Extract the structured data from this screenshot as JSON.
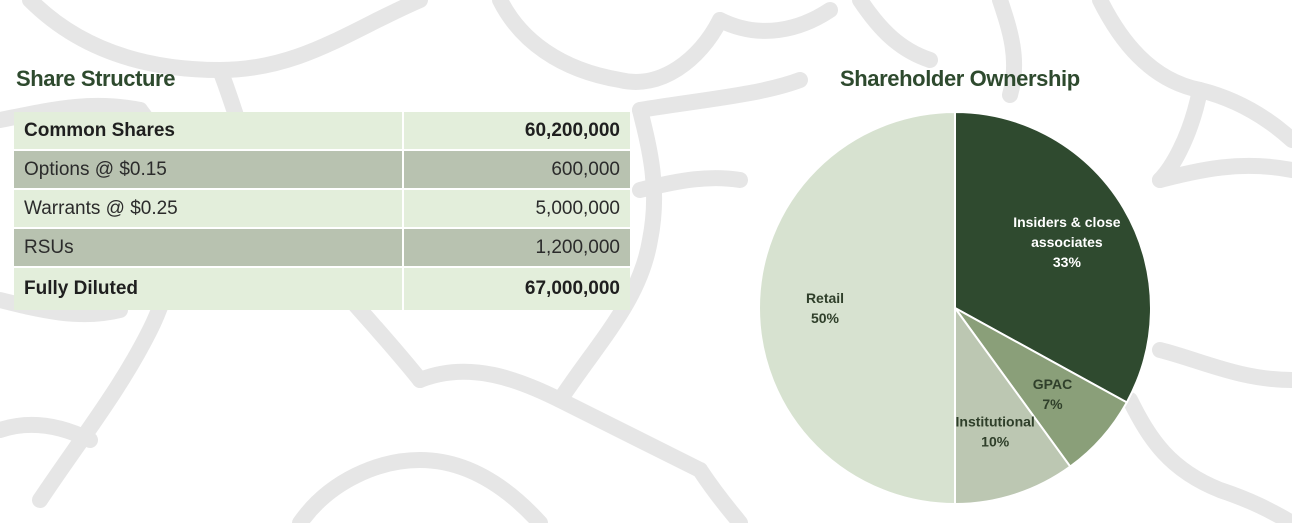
{
  "share_structure": {
    "title": "Share Structure",
    "rows": [
      {
        "label": "Common Shares",
        "value": "60,200,000"
      },
      {
        "label": "Options @ $0.15",
        "value": "600,000"
      },
      {
        "label": "Warrants @ $0.25",
        "value": "5,000,000"
      },
      {
        "label": "RSUs",
        "value": "1,200,000"
      },
      {
        "label": "Fully Diluted",
        "value": "67,000,000"
      }
    ]
  },
  "chart_data": {
    "type": "pie",
    "title": "Shareholder Ownership",
    "slices": [
      {
        "label": [
          "Insiders & close",
          "associates"
        ],
        "pct_label": "33%",
        "value": 33,
        "color": "#2f4a2f",
        "text_color": "#ffffff"
      },
      {
        "label": [
          "GPAC"
        ],
        "pct_label": "7%",
        "value": 7,
        "color": "#8a9f79",
        "text_color": "#2f3f2a"
      },
      {
        "label": [
          "Institutional"
        ],
        "pct_label": "10%",
        "value": 10,
        "color": "#bcc7b2",
        "text_color": "#2f3f2a"
      },
      {
        "label": [
          "Retail"
        ],
        "pct_label": "50%",
        "value": 50,
        "color": "#d7e2d0",
        "text_color": "#2f3f2a"
      }
    ],
    "start_angle": "12 o'clock",
    "direction": "clockwise"
  },
  "colors": {
    "title": "#2e4a2e",
    "row_light": "#e3eedb",
    "row_dark": "#b8c2b0",
    "background_lines": "#e4e4e4"
  }
}
